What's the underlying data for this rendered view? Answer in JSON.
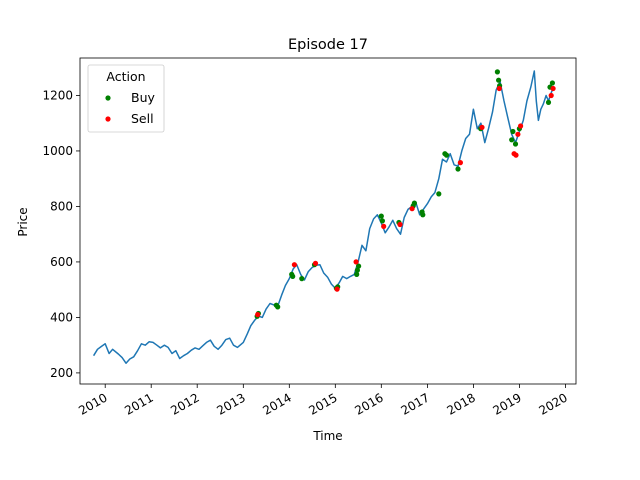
{
  "chart_data": {
    "type": "line",
    "title": "Episode 17",
    "xlabel": "Time",
    "ylabel": "Price",
    "xlim": [
      "2009-06-15",
      "2020-03-25"
    ],
    "ylim": [
      160,
      1335
    ],
    "x_ticks": [
      "2010",
      "2011",
      "2012",
      "2013",
      "2014",
      "2015",
      "2016",
      "2017",
      "2018",
      "2019",
      "2020"
    ],
    "y_ticks": [
      200,
      400,
      600,
      800,
      1000,
      1200
    ],
    "grid": false,
    "legend": {
      "title": "Action",
      "placement": "top-left"
    },
    "colors": {
      "price": "#1f77b4",
      "buy": "#008000",
      "sell": "#ff0000"
    },
    "series": [
      {
        "type": "line",
        "points": [
          [
            "2009-10-01",
            262
          ],
          [
            "2009-11-01",
            285
          ],
          [
            "2009-12-01",
            295
          ],
          [
            "2010-01-01",
            305
          ],
          [
            "2010-02-01",
            270
          ],
          [
            "2010-03-01",
            285
          ],
          [
            "2010-04-15",
            268
          ],
          [
            "2010-05-15",
            255
          ],
          [
            "2010-06-15",
            235
          ],
          [
            "2010-07-15",
            250
          ],
          [
            "2010-08-15",
            258
          ],
          [
            "2010-09-15",
            280
          ],
          [
            "2010-10-15",
            305
          ],
          [
            "2010-11-15",
            300
          ],
          [
            "2010-12-15",
            312
          ],
          [
            "2011-01-15",
            310
          ],
          [
            "2011-02-15",
            300
          ],
          [
            "2011-03-15",
            290
          ],
          [
            "2011-04-15",
            300
          ],
          [
            "2011-05-15",
            292
          ],
          [
            "2011-06-15",
            270
          ],
          [
            "2011-07-15",
            280
          ],
          [
            "2011-08-15",
            252
          ],
          [
            "2011-09-15",
            262
          ],
          [
            "2011-10-15",
            270
          ],
          [
            "2011-11-15",
            282
          ],
          [
            "2011-12-15",
            290
          ],
          [
            "2012-01-15",
            285
          ],
          [
            "2012-02-15",
            298
          ],
          [
            "2012-03-15",
            310
          ],
          [
            "2012-04-15",
            318
          ],
          [
            "2012-05-15",
            296
          ],
          [
            "2012-06-15",
            285
          ],
          [
            "2012-07-15",
            300
          ],
          [
            "2012-08-15",
            320
          ],
          [
            "2012-09-15",
            325
          ],
          [
            "2012-10-15",
            300
          ],
          [
            "2012-11-15",
            292
          ],
          [
            "2013-01-01",
            310
          ],
          [
            "2013-02-01",
            340
          ],
          [
            "2013-03-01",
            370
          ],
          [
            "2013-04-01",
            390
          ],
          [
            "2013-05-01",
            405
          ],
          [
            "2013-06-01",
            400
          ],
          [
            "2013-07-01",
            430
          ],
          [
            "2013-08-01",
            450
          ],
          [
            "2013-09-01",
            445
          ],
          [
            "2013-10-01",
            440
          ],
          [
            "2013-11-01",
            480
          ],
          [
            "2013-12-01",
            515
          ],
          [
            "2014-01-01",
            540
          ],
          [
            "2014-02-01",
            575
          ],
          [
            "2014-03-01",
            590
          ],
          [
            "2014-04-01",
            555
          ],
          [
            "2014-05-01",
            535
          ],
          [
            "2014-06-01",
            565
          ],
          [
            "2014-07-01",
            580
          ],
          [
            "2014-08-01",
            588
          ],
          [
            "2014-09-01",
            590
          ],
          [
            "2014-10-01",
            560
          ],
          [
            "2014-11-01",
            545
          ],
          [
            "2014-12-01",
            520
          ],
          [
            "2015-01-01",
            505
          ],
          [
            "2015-02-01",
            525
          ],
          [
            "2015-03-01",
            548
          ],
          [
            "2015-04-01",
            540
          ],
          [
            "2015-05-01",
            548
          ],
          [
            "2015-06-01",
            555
          ],
          [
            "2015-07-01",
            600
          ],
          [
            "2015-08-01",
            660
          ],
          [
            "2015-09-01",
            640
          ],
          [
            "2015-10-01",
            720
          ],
          [
            "2015-11-01",
            755
          ],
          [
            "2015-12-01",
            770
          ],
          [
            "2016-01-01",
            740
          ],
          [
            "2016-02-01",
            705
          ],
          [
            "2016-03-01",
            725
          ],
          [
            "2016-04-01",
            750
          ],
          [
            "2016-05-01",
            720
          ],
          [
            "2016-06-01",
            700
          ],
          [
            "2016-07-01",
            760
          ],
          [
            "2016-08-01",
            790
          ],
          [
            "2016-09-01",
            800
          ],
          [
            "2016-10-01",
            815
          ],
          [
            "2016-11-01",
            770
          ],
          [
            "2016-12-01",
            790
          ],
          [
            "2017-01-01",
            810
          ],
          [
            "2017-02-01",
            835
          ],
          [
            "2017-03-01",
            850
          ],
          [
            "2017-04-01",
            900
          ],
          [
            "2017-05-01",
            970
          ],
          [
            "2017-06-01",
            960
          ],
          [
            "2017-07-01",
            990
          ],
          [
            "2017-08-01",
            950
          ],
          [
            "2017-09-01",
            945
          ],
          [
            "2017-10-01",
            1000
          ],
          [
            "2017-11-01",
            1045
          ],
          [
            "2017-12-01",
            1060
          ],
          [
            "2018-01-01",
            1150
          ],
          [
            "2018-02-01",
            1080
          ],
          [
            "2018-03-01",
            1100
          ],
          [
            "2018-04-01",
            1030
          ],
          [
            "2018-05-01",
            1080
          ],
          [
            "2018-06-01",
            1140
          ],
          [
            "2018-07-01",
            1220
          ],
          [
            "2018-08-01",
            1250
          ],
          [
            "2018-09-01",
            1180
          ],
          [
            "2018-10-01",
            1120
          ],
          [
            "2018-11-01",
            1060
          ],
          [
            "2018-12-01",
            1030
          ],
          [
            "2019-01-01",
            1070
          ],
          [
            "2019-02-01",
            1110
          ],
          [
            "2019-03-01",
            1180
          ],
          [
            "2019-04-01",
            1230
          ],
          [
            "2019-04-29",
            1288
          ],
          [
            "2019-05-15",
            1180
          ],
          [
            "2019-06-01",
            1110
          ],
          [
            "2019-06-20",
            1150
          ],
          [
            "2019-07-10",
            1170
          ],
          [
            "2019-08-01",
            1200
          ],
          [
            "2019-08-20",
            1180
          ],
          [
            "2019-09-10",
            1210
          ],
          [
            "2019-09-30",
            1230
          ]
        ]
      },
      {
        "name": "Buy",
        "type": "scatter",
        "points": [
          [
            "2013-04-20",
            404
          ],
          [
            "2013-05-01",
            414
          ],
          [
            "2013-09-20",
            444
          ],
          [
            "2013-10-01",
            438
          ],
          [
            "2014-01-20",
            555
          ],
          [
            "2014-01-28",
            548
          ],
          [
            "2014-04-10",
            540
          ],
          [
            "2014-07-20",
            590
          ],
          [
            "2015-01-10",
            505
          ],
          [
            "2015-01-20",
            510
          ],
          [
            "2015-06-20",
            555
          ],
          [
            "2015-06-25",
            570
          ],
          [
            "2015-07-05",
            585
          ],
          [
            "2016-01-01",
            765
          ],
          [
            "2016-01-10",
            748
          ],
          [
            "2016-05-20",
            742
          ],
          [
            "2016-09-10",
            802
          ],
          [
            "2016-09-20",
            812
          ],
          [
            "2016-11-20",
            780
          ],
          [
            "2016-11-25",
            770
          ],
          [
            "2017-04-01",
            845
          ],
          [
            "2017-05-20",
            990
          ],
          [
            "2017-06-01",
            985
          ],
          [
            "2017-09-01",
            935
          ],
          [
            "2018-02-28",
            1080
          ],
          [
            "2018-07-10",
            1285
          ],
          [
            "2018-07-20",
            1255
          ],
          [
            "2018-07-28",
            1235
          ],
          [
            "2018-11-01",
            1040
          ],
          [
            "2018-11-10",
            1070
          ],
          [
            "2018-12-01",
            1025
          ],
          [
            "2019-01-01",
            1080
          ],
          [
            "2019-08-20",
            1175
          ],
          [
            "2019-09-01",
            1230
          ],
          [
            "2019-09-20",
            1245
          ]
        ]
      },
      {
        "name": "Sell",
        "type": "scatter",
        "points": [
          [
            "2013-04-25",
            410
          ],
          [
            "2014-02-10",
            590
          ],
          [
            "2014-07-28",
            595
          ],
          [
            "2015-01-15",
            502
          ],
          [
            "2015-06-15",
            600
          ],
          [
            "2016-01-20",
            728
          ],
          [
            "2016-05-28",
            735
          ],
          [
            "2016-09-01",
            792
          ],
          [
            "2017-09-20",
            958
          ],
          [
            "2018-03-10",
            1085
          ],
          [
            "2018-07-25",
            1225
          ],
          [
            "2018-11-20",
            990
          ],
          [
            "2018-12-05",
            985
          ],
          [
            "2018-12-20",
            1060
          ],
          [
            "2019-01-10",
            1090
          ],
          [
            "2019-09-10",
            1200
          ],
          [
            "2019-09-25",
            1225
          ]
        ]
      }
    ]
  }
}
